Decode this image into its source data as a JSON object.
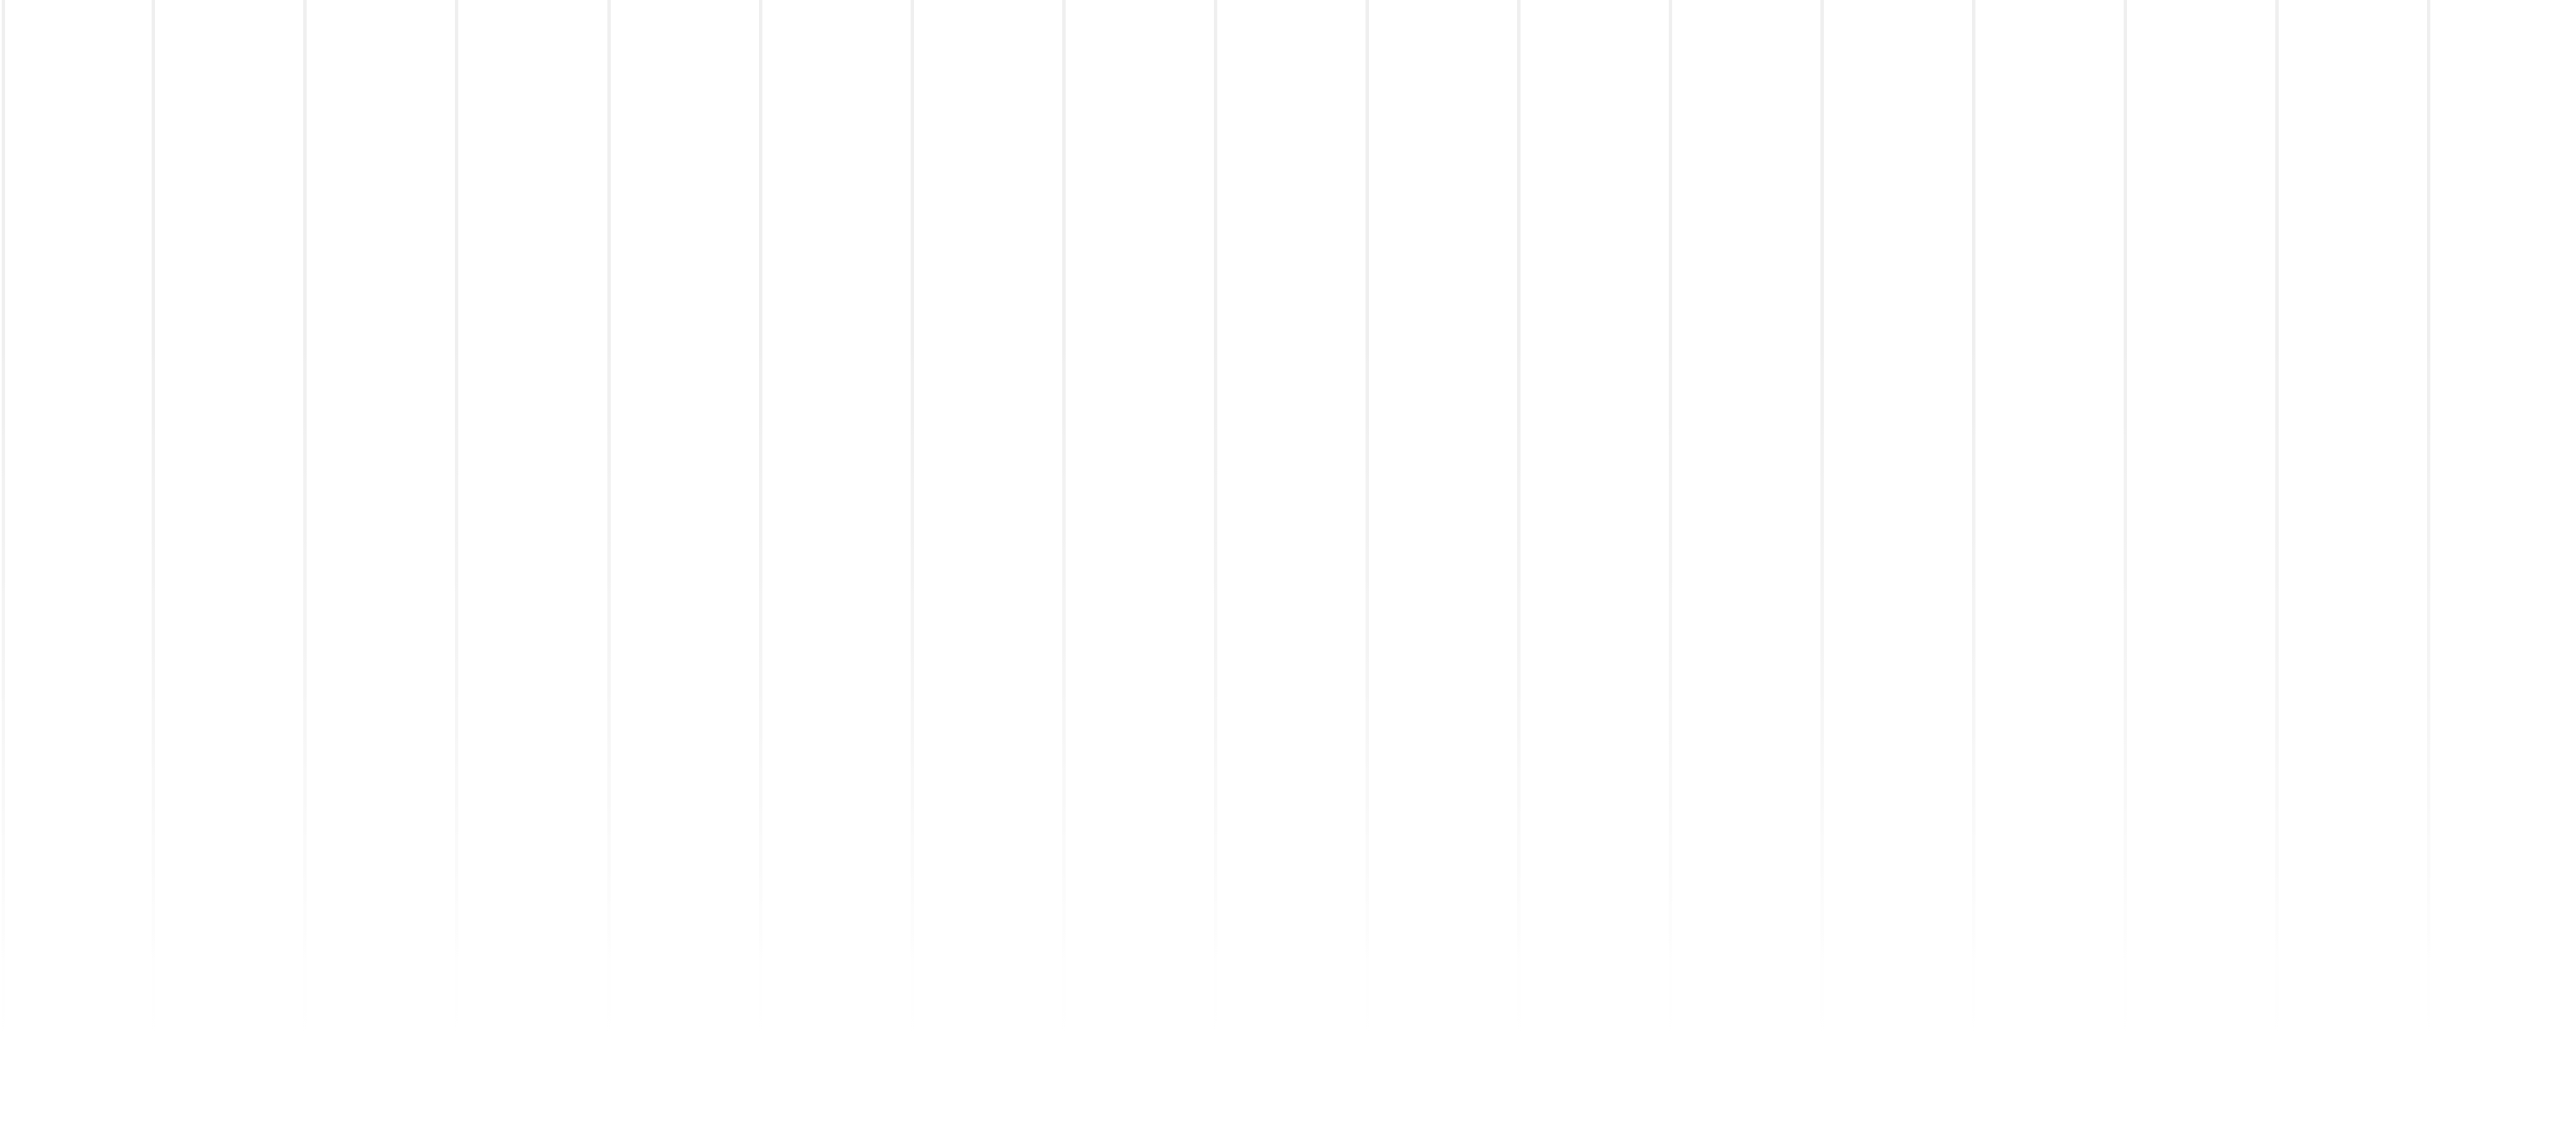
{
  "page": {
    "background_color": "#ffffff",
    "rule_color": "#efefef"
  }
}
